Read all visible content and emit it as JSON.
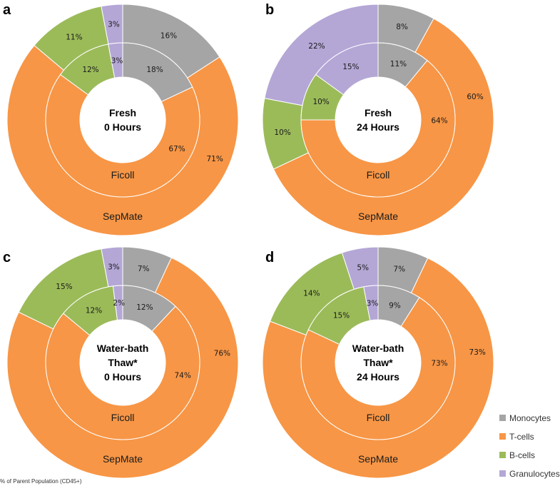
{
  "footnote": "% of Parent Population (CD45+)",
  "legend": {
    "items": [
      {
        "name": "Monocytes",
        "color": "#a5a5a5"
      },
      {
        "name": "T-cells",
        "color": "#f79646"
      },
      {
        "name": "B-cells",
        "color": "#9bbb59"
      },
      {
        "name": "Granulocytes",
        "color": "#b4a7d6"
      }
    ]
  },
  "chart_data": [
    {
      "type": "pie",
      "panel_label": "a",
      "center_lines": [
        "Fresh",
        "0 Hours"
      ],
      "categories": [
        "Monocytes",
        "T-cells",
        "B-cells",
        "Granulocytes"
      ],
      "series": [
        {
          "name": "SepMate",
          "values": [
            16,
            71,
            11,
            3
          ],
          "labels": [
            "16%",
            "71%",
            "11%",
            "3%"
          ]
        },
        {
          "name": "Ficoll",
          "values": [
            18,
            67,
            12,
            3
          ],
          "labels": [
            "18%",
            "67%",
            "12%",
            "3%"
          ]
        }
      ]
    },
    {
      "type": "pie",
      "panel_label": "b",
      "center_lines": [
        "Fresh",
        "24 Hours"
      ],
      "categories": [
        "Monocytes",
        "T-cells",
        "B-cells",
        "Granulocytes"
      ],
      "series": [
        {
          "name": "SepMate",
          "values": [
            8,
            60,
            10,
            22
          ],
          "labels": [
            "8%",
            "60%",
            "10%",
            "22%"
          ]
        },
        {
          "name": "Ficoll",
          "values": [
            11,
            64,
            10,
            15
          ],
          "labels": [
            "11%",
            "64%",
            "10%",
            "15%"
          ]
        }
      ]
    },
    {
      "type": "pie",
      "panel_label": "c",
      "center_lines": [
        "Water-bath",
        "Thaw*",
        "0 Hours"
      ],
      "categories": [
        "Monocytes",
        "T-cells",
        "B-cells",
        "Granulocytes"
      ],
      "series": [
        {
          "name": "SepMate",
          "values": [
            7,
            76,
            15,
            3
          ],
          "labels": [
            "7%",
            "76%",
            "15%",
            "3%"
          ]
        },
        {
          "name": "Ficoll",
          "values": [
            12,
            74,
            12,
            2
          ],
          "labels": [
            "12%",
            "74%",
            "12%",
            "2%"
          ]
        }
      ]
    },
    {
      "type": "pie",
      "panel_label": "d",
      "center_lines": [
        "Water-bath",
        "Thaw*",
        "24 Hours"
      ],
      "categories": [
        "Monocytes",
        "T-cells",
        "B-cells",
        "Granulocytes"
      ],
      "series": [
        {
          "name": "SepMate",
          "values": [
            7,
            73,
            14,
            5
          ],
          "labels": [
            "7%",
            "73%",
            "14%",
            "5%"
          ]
        },
        {
          "name": "Ficoll",
          "values": [
            9,
            73,
            15,
            3
          ],
          "labels": [
            "9%",
            "73%",
            "15%",
            "3%"
          ]
        }
      ]
    }
  ]
}
